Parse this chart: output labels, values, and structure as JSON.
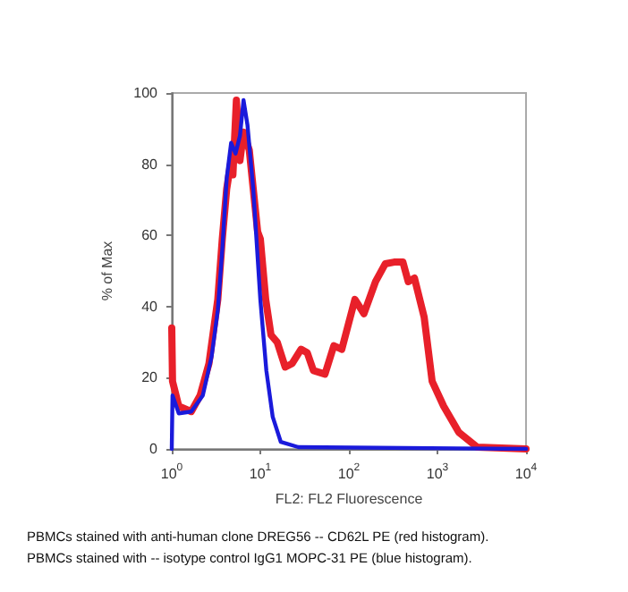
{
  "chart_data": {
    "type": "line",
    "xlabel": "FL2: FL2 Fluorescence",
    "ylabel": "% of Max",
    "log": "x",
    "grid": false,
    "marker": "none",
    "line_style": "solid",
    "xlim": [
      1,
      10000
    ],
    "xticks": [
      {
        "value": 1,
        "label": "10$^{0}$"
      },
      {
        "value": 10,
        "label": "10$^{1}$"
      },
      {
        "value": 100,
        "label": "10$^{2}$"
      },
      {
        "value": 1000,
        "label": "10$^{3}$"
      },
      {
        "value": 10000,
        "label": "10$^{4}$"
      }
    ],
    "ylim": [
      0,
      100
    ],
    "yticks": [
      0,
      20,
      40,
      60,
      80,
      100
    ],
    "series": [
      {
        "color": "#e8202a",
        "x": [
          1,
          1.02,
          1.2,
          1.66,
          2.09,
          2.63,
          3.31,
          3.72,
          4.17,
          4.68,
          4.9,
          5.37,
          5.89,
          6.46,
          7.5,
          8.32,
          9.33,
          10,
          11.5,
          13.2,
          15.5,
          19.1,
          22.9,
          28.8,
          33.9,
          39.8,
          53.7,
          67.6,
          83.2,
          117,
          148,
          200,
          257,
          324,
          407,
          468,
          550,
          708,
          871,
          1175,
          1738,
          2818,
          10000
        ],
        "values": [
          34,
          19,
          12,
          10.5,
          15,
          24,
          42,
          59,
          73,
          81,
          77,
          98,
          81,
          89,
          84,
          73,
          61,
          59,
          42,
          32,
          30,
          23,
          24,
          28,
          27,
          22,
          21,
          29,
          28,
          42,
          38,
          47,
          52,
          52.5,
          52.5,
          47,
          48,
          37,
          19,
          12,
          4.7,
          0.5,
          0
        ]
      },
      {
        "color": "#1a1adb",
        "x": [
          1,
          1.02,
          1.2,
          1.66,
          2.24,
          2.82,
          3.31,
          3.72,
          4.17,
          4.68,
          5.25,
          5.89,
          6.46,
          7.16,
          8.32,
          10,
          11.7,
          13.8,
          17,
          26.9,
          10000
        ],
        "values": [
          0,
          15,
          10,
          10.5,
          15,
          26,
          39,
          56,
          76,
          86,
          83,
          88,
          98,
          91,
          73,
          42,
          22,
          9,
          2,
          0.5,
          0
        ]
      }
    ],
    "annotations": [
      "PBMCs stained with anti-human clone DREG56 -- CD62L PE (red histogram).",
      "PBMCs stained with -- isotype control IgG1 MOPC-31 PE (blue histogram)."
    ]
  }
}
